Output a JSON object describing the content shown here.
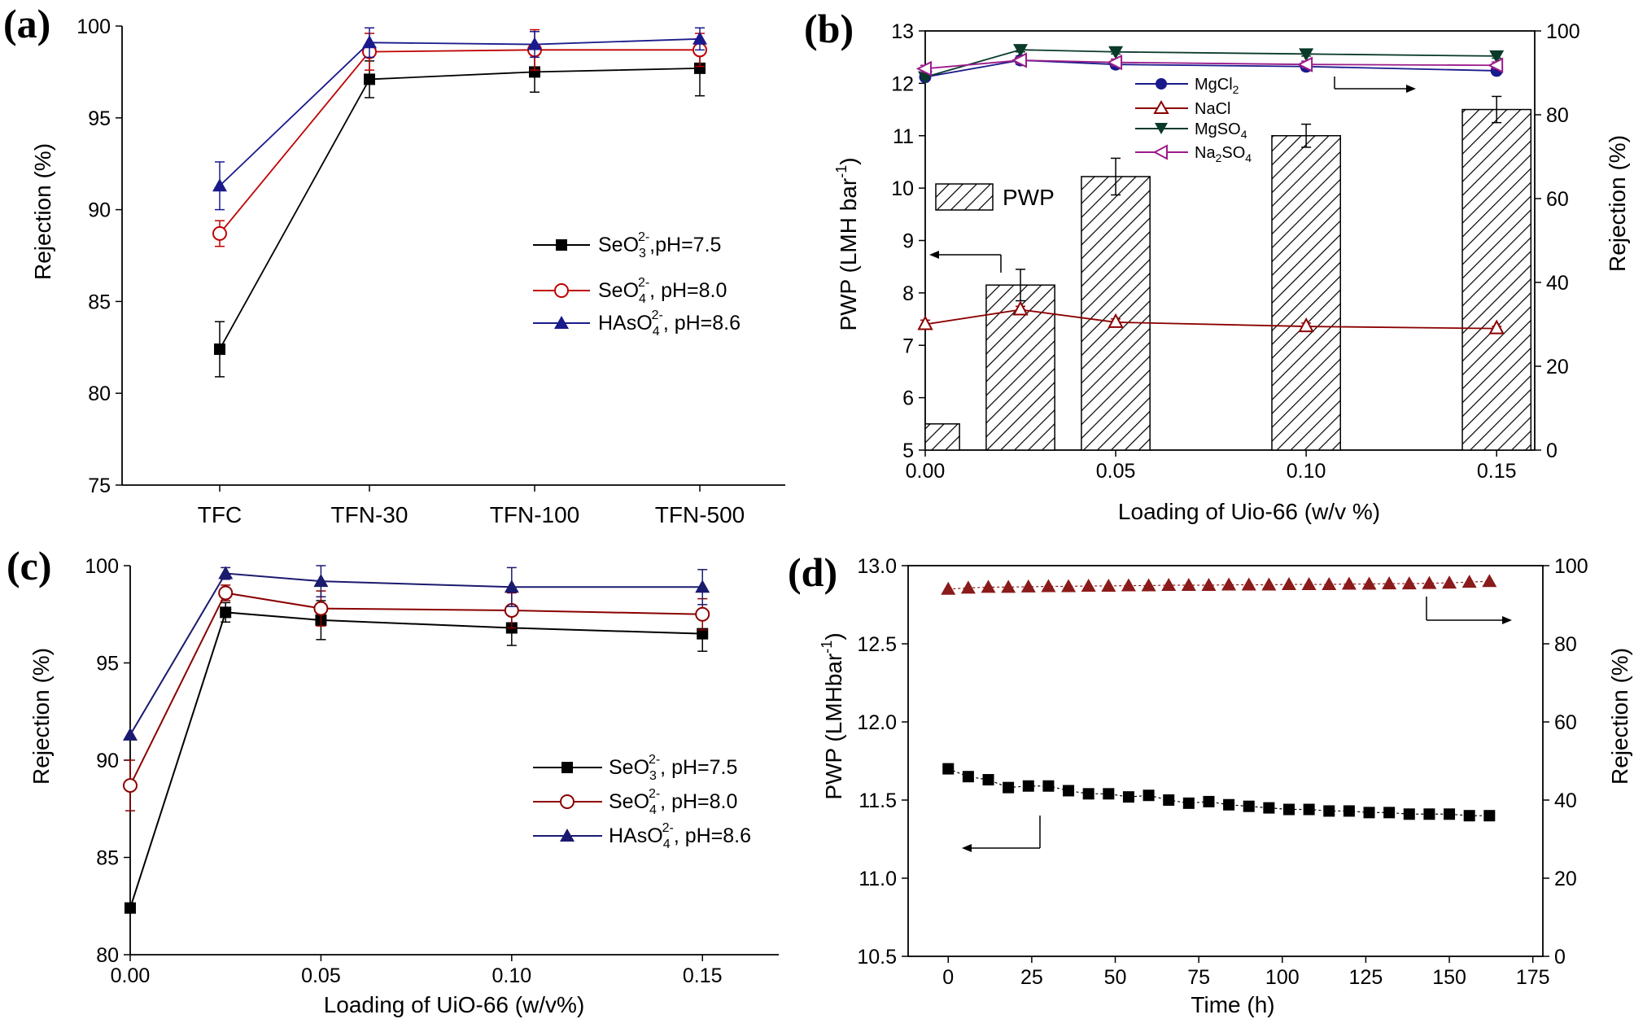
{
  "chart_data": [
    {
      "panel": "(a)",
      "type": "line",
      "xlabel": "",
      "ylabel": "Rejection (%)",
      "categories": [
        "TFC",
        "TFN-30",
        "TFN-100",
        "TFN-500"
      ],
      "ylim": [
        75,
        100
      ],
      "yticks": [
        "75",
        "80",
        "85",
        "90",
        "95",
        "100"
      ],
      "legend_position": "center-right",
      "series": [
        {
          "name": "SeO3 2-, pH=7.5",
          "legend_main": "SeO",
          "legend_sub": "3",
          "legend_sup": "2-",
          "legend_tail": ",pH=7.5",
          "color": "#000000",
          "marker": "square-filled",
          "values": [
            82.4,
            97.1,
            97.5,
            97.7
          ],
          "errors": [
            1.5,
            1.0,
            1.1,
            1.5
          ]
        },
        {
          "name": "SeO4 2-, pH=8.0",
          "legend_main": "SeO",
          "legend_sub": "4",
          "legend_sup": "2-",
          "legend_tail": ", pH=8.0",
          "color": "#c00000",
          "marker": "circle-open",
          "values": [
            88.7,
            98.6,
            98.7,
            98.7
          ],
          "errors": [
            0.7,
            1.0,
            1.1,
            0.9
          ]
        },
        {
          "name": "HAsO4 2-, pH=8.6",
          "legend_main": "HAsO",
          "legend_sub": "4",
          "legend_sup": "2-",
          "legend_tail": ", pH=8.6",
          "color": "#1a1a8c",
          "marker": "triangle-filled",
          "values": [
            91.3,
            99.1,
            99.0,
            99.3
          ],
          "errors": [
            1.3,
            0.8,
            0.7,
            0.6
          ]
        }
      ]
    },
    {
      "panel": "(b)",
      "type": "bar+line",
      "xlabel": "Loading of Uio-66 (w/v %)",
      "ylabel_left": "PWP (LMH bar -1)",
      "ylabel_left_main": "PWP (LMH bar",
      "ylabel_left_sup": "-1",
      "ylabel_left_tail": ")",
      "ylabel_right": "Rejection (%)",
      "x_ticks": [
        "0.00",
        "0.05",
        "0.10",
        "0.15"
      ],
      "xlim": [
        0.0,
        0.16
      ],
      "ylim_left": [
        5,
        13
      ],
      "yticks_left": [
        "5",
        "6",
        "7",
        "8",
        "9",
        "10",
        "11",
        "12",
        "13"
      ],
      "ylim_right": [
        0,
        100
      ],
      "yticks_right": [
        "0",
        "20",
        "40",
        "60",
        "80",
        "100"
      ],
      "bars": {
        "name": "PWP",
        "x": [
          0.0,
          0.025,
          0.05,
          0.1,
          0.15
        ],
        "values": [
          5.5,
          8.15,
          10.22,
          11.0,
          11.5
        ],
        "errors": [
          0,
          0.3,
          0.35,
          0.22,
          0.25
        ]
      },
      "series": [
        {
          "name": "MgCl2",
          "legend_main": "MgCl",
          "legend_sub": "2",
          "color": "#1a1a8c",
          "marker": "circle-filled",
          "x": [
            0.0,
            0.025,
            0.05,
            0.1,
            0.15
          ],
          "values": [
            89,
            93,
            92,
            91.5,
            90.5
          ],
          "errors": [
            0.8,
            1.0,
            0.9,
            0.9,
            0.7
          ]
        },
        {
          "name": "NaCl",
          "legend_main": "NaCl",
          "legend_sub": "",
          "color": "#8b0000",
          "marker": "triangle-open",
          "x": [
            0.0,
            0.025,
            0.05,
            0.1,
            0.15
          ],
          "values": [
            30,
            33.5,
            30.5,
            29.5,
            29
          ],
          "errors": [
            1.0,
            0.8,
            0.8,
            0.8,
            0.5
          ]
        },
        {
          "name": "MgSO4",
          "legend_main": "MgSO",
          "legend_sub": "4",
          "color": "#0a3a2a",
          "marker": "triangle-down-filled",
          "x": [
            0.0,
            0.025,
            0.05,
            0.1,
            0.15
          ],
          "values": [
            89,
            95.5,
            95,
            94.5,
            94
          ],
          "errors": [
            0.5,
            0.5,
            0.5,
            0.5,
            0.5
          ]
        },
        {
          "name": "Na2SO4",
          "legend_main": "Na",
          "legend_sub": "2",
          "legend_tail": "SO",
          "legend_sub2": "4",
          "color": "#9b1b8a",
          "marker": "triangle-left-open",
          "x": [
            0.0,
            0.025,
            0.05,
            0.1,
            0.15
          ],
          "values": [
            91,
            93,
            92.5,
            92,
            91.8
          ],
          "errors": [
            0.8,
            0.8,
            0.8,
            0.8,
            0.8
          ]
        }
      ]
    },
    {
      "panel": "(c)",
      "type": "line",
      "xlabel": "Loading of UiO-66 (w/v%)",
      "ylabel": "Rejection (%)",
      "x_ticks": [
        "0.00",
        "0.05",
        "0.10",
        "0.15"
      ],
      "xlim": [
        0.0,
        0.17
      ],
      "ylim": [
        80,
        100
      ],
      "yticks": [
        "80",
        "85",
        "90",
        "95",
        "100"
      ],
      "legend_position": "center-right",
      "series": [
        {
          "name": "SeO3 2-, pH=7.5",
          "legend_main": "SeO",
          "legend_sub": "3",
          "legend_sup": "2-",
          "legend_tail": ", pH=7.5",
          "color": "#000000",
          "marker": "square-filled",
          "x": [
            0.0,
            0.025,
            0.05,
            0.1,
            0.15
          ],
          "values": [
            82.4,
            97.6,
            97.2,
            96.8,
            96.5
          ],
          "errors": [
            0,
            0.5,
            1.0,
            0.9,
            0.9
          ]
        },
        {
          "name": "SeO4 2-, pH=8.0",
          "legend_main": "SeO",
          "legend_sub": "4",
          "legend_sup": "2-",
          "legend_tail": ", pH=8.0",
          "color": "#8b0000",
          "marker": "circle-open",
          "x": [
            0.0,
            0.025,
            0.05,
            0.1,
            0.15
          ],
          "values": [
            88.7,
            98.6,
            97.8,
            97.7,
            97.5
          ],
          "errors": [
            1.3,
            0.4,
            0.9,
            0.9,
            0.8
          ]
        },
        {
          "name": "HAsO4 2-, pH=8.6",
          "legend_main": "HAsO",
          "legend_sub": "4",
          "legend_sup": "2-",
          "legend_tail": ", pH=8.6",
          "color": "#1a1a6e",
          "marker": "triangle-filled",
          "x": [
            0.0,
            0.025,
            0.05,
            0.1,
            0.15
          ],
          "values": [
            91.3,
            99.6,
            99.2,
            98.9,
            98.9
          ],
          "errors": [
            0,
            0.3,
            0.8,
            1.0,
            0.9
          ]
        }
      ]
    },
    {
      "panel": "(d)",
      "type": "scatter",
      "xlabel": "Time (h)",
      "ylabel_left": "PWP (LMHbar -1)",
      "ylabel_left_main": "PWP (LMHbar",
      "ylabel_left_sup": "-1",
      "ylabel_left_tail": ")",
      "ylabel_right": "Rejection (%)",
      "x_ticks": [
        "0",
        "25",
        "50",
        "75",
        "100",
        "125",
        "150",
        "175"
      ],
      "xlim": [
        -12,
        178
      ],
      "ylim_left": [
        10.5,
        13.0
      ],
      "yticks_left": [
        "10.5",
        "11.0",
        "11.5",
        "12.0",
        "12.5",
        "13.0"
      ],
      "ylim_right": [
        0,
        100
      ],
      "yticks_right": [
        "0",
        "20",
        "40",
        "60",
        "80",
        "100"
      ],
      "series": [
        {
          "name": "PWP",
          "axis": "left",
          "color": "#000000",
          "marker": "square-filled",
          "x": [
            0,
            6,
            12,
            18,
            24,
            30,
            36,
            42,
            48,
            54,
            60,
            66,
            72,
            78,
            84,
            90,
            96,
            102,
            108,
            114,
            120,
            126,
            132,
            138,
            144,
            150,
            156,
            162
          ],
          "values": [
            11.7,
            11.65,
            11.63,
            11.58,
            11.59,
            11.59,
            11.56,
            11.54,
            11.54,
            11.52,
            11.53,
            11.5,
            11.48,
            11.49,
            11.47,
            11.46,
            11.45,
            11.44,
            11.44,
            11.43,
            11.43,
            11.42,
            11.42,
            11.41,
            11.41,
            11.41,
            11.4,
            11.4
          ]
        },
        {
          "name": "Rejection",
          "axis": "right",
          "color": "#8b1a1a",
          "marker": "triangle-filled",
          "x": [
            0,
            6,
            12,
            18,
            24,
            30,
            36,
            42,
            48,
            54,
            60,
            66,
            72,
            78,
            84,
            90,
            96,
            102,
            108,
            114,
            120,
            126,
            132,
            138,
            144,
            150,
            156,
            162
          ],
          "values": [
            94.0,
            94.3,
            94.5,
            94.5,
            94.6,
            94.7,
            94.7,
            94.8,
            94.8,
            94.9,
            94.9,
            95.0,
            95.0,
            95.0,
            95.1,
            95.1,
            95.1,
            95.2,
            95.2,
            95.2,
            95.3,
            95.3,
            95.4,
            95.4,
            95.5,
            95.6,
            95.8,
            96.0
          ]
        }
      ]
    }
  ]
}
